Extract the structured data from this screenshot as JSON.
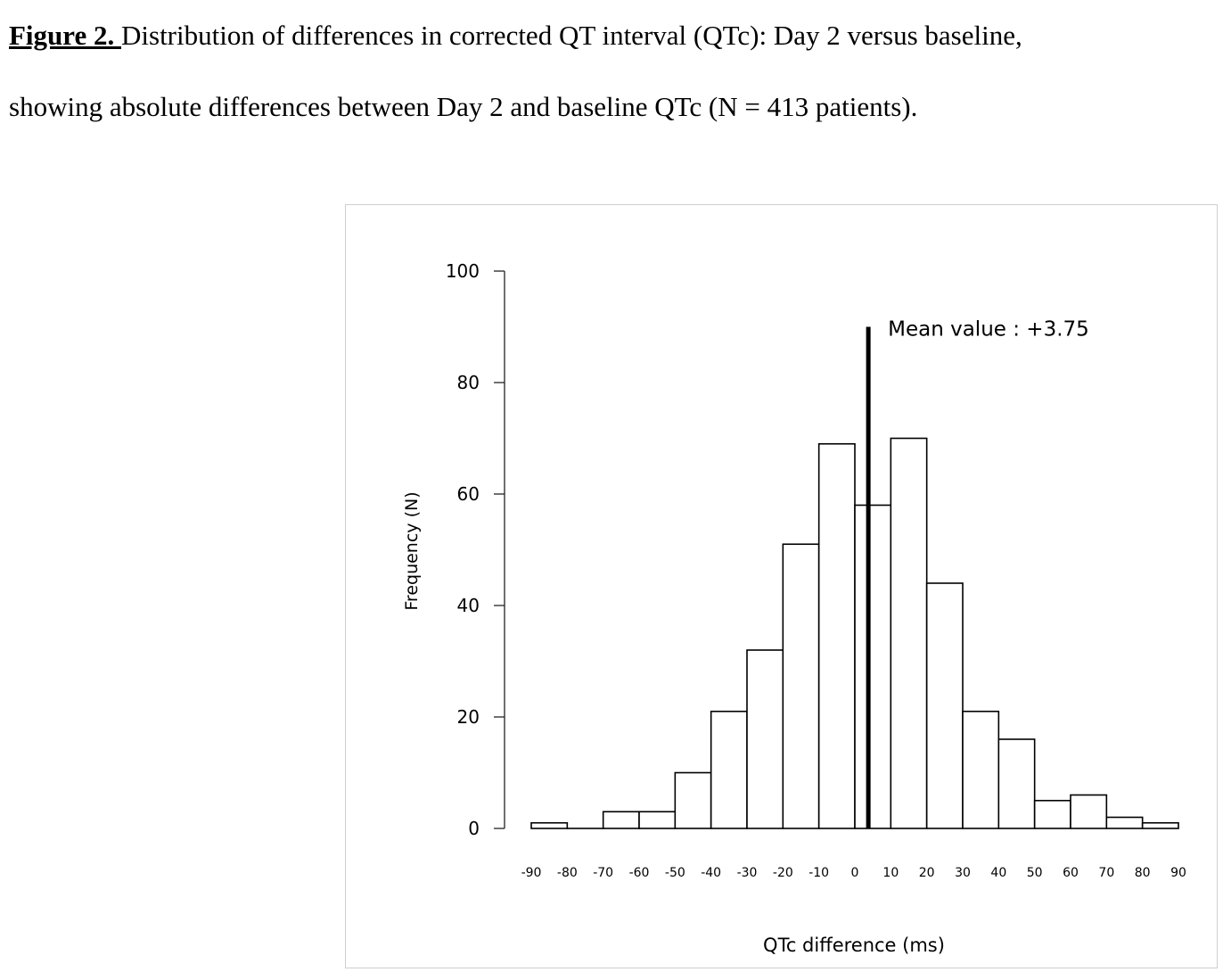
{
  "caption": {
    "label": "Figure 2. ",
    "line1": "Distribution of differences in corrected QT interval (QTc): Day 2 versus baseline,",
    "line2": "showing absolute differences between Day 2 and baseline QTc (N = 413 patients)."
  },
  "chart_data": {
    "type": "bar",
    "subtype": "histogram",
    "title": "",
    "xlabel": "QTc difference (ms)",
    "ylabel": "Frequency (N)",
    "xlim": [
      -90,
      90
    ],
    "ylim": [
      0,
      100
    ],
    "x_ticks": [
      "-90",
      "-80",
      "-70",
      "-60",
      "-50",
      "-40",
      "-30",
      "-20",
      "-10",
      "0",
      "10",
      "20",
      "30",
      "40",
      "50",
      "60",
      "70",
      "80",
      "90"
    ],
    "y_ticks": [
      "0",
      "20",
      "40",
      "60",
      "80",
      "100"
    ],
    "bins": [
      {
        "from": -90,
        "to": -80,
        "value": 1
      },
      {
        "from": -80,
        "to": -70,
        "value": 0
      },
      {
        "from": -70,
        "to": -60,
        "value": 3
      },
      {
        "from": -60,
        "to": -50,
        "value": 3
      },
      {
        "from": -50,
        "to": -40,
        "value": 10
      },
      {
        "from": -40,
        "to": -30,
        "value": 21
      },
      {
        "from": -30,
        "to": -20,
        "value": 32
      },
      {
        "from": -20,
        "to": -10,
        "value": 51
      },
      {
        "from": -10,
        "to": 0,
        "value": 69
      },
      {
        "from": 0,
        "to": 10,
        "value": 58
      },
      {
        "from": 10,
        "to": 20,
        "value": 70
      },
      {
        "from": 20,
        "to": 30,
        "value": 44
      },
      {
        "from": 30,
        "to": 40,
        "value": 21
      },
      {
        "from": 40,
        "to": 50,
        "value": 16
      },
      {
        "from": 50,
        "to": 60,
        "value": 5
      },
      {
        "from": 60,
        "to": 70,
        "value": 6
      },
      {
        "from": 70,
        "to": 80,
        "value": 2
      },
      {
        "from": 80,
        "to": 90,
        "value": 1
      }
    ],
    "mean_line": {
      "x": 3.75,
      "top": 90,
      "label": "Mean value : +3.75"
    },
    "grid": false,
    "legend": "none",
    "bar_fill": "#ffffff",
    "bar_stroke": "#000000"
  }
}
